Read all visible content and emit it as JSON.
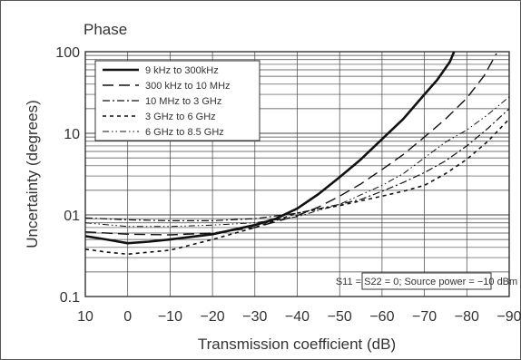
{
  "chart_data": {
    "type": "line",
    "title": "Phase",
    "xlabel": "Transmission coefficient (dB)",
    "ylabel": "Uncertainty (degrees)",
    "x_scale": "linear-reversed",
    "y_scale": "log",
    "xlim": [
      10,
      -90
    ],
    "ylim": [
      0.1,
      100
    ],
    "x_ticks": [
      10,
      0,
      -10,
      -20,
      -30,
      -40,
      -50,
      -60,
      -70,
      -80,
      -90
    ],
    "x_tick_labels": [
      "10",
      "0",
      "−10",
      "−20",
      "−30",
      "−40",
      "−50",
      "−60",
      "−70",
      "−80",
      "−90"
    ],
    "y_ticks": [
      0.1,
      1,
      10,
      100
    ],
    "y_tick_labels": [
      "0.1",
      "01",
      "10",
      "100"
    ],
    "grid": true,
    "legend_position": "top-left",
    "annotation": "S11 = S22 = 0; Source power = −10 dBm",
    "series": [
      {
        "name": "9 kHz to 300kHz",
        "style": "solid-thick",
        "x": [
          10,
          5,
          0,
          -5,
          -10,
          -20,
          -30,
          -35,
          -40,
          -45,
          -50,
          -55,
          -60,
          -65,
          -70,
          -73,
          -76,
          -77
        ],
        "y": [
          0.55,
          0.5,
          0.45,
          0.47,
          0.5,
          0.58,
          0.75,
          0.9,
          1.2,
          1.8,
          2.9,
          4.8,
          8.5,
          15,
          30,
          45,
          75,
          100
        ]
      },
      {
        "name": "300 kHz to 10 MHz",
        "style": "long-dash",
        "x": [
          10,
          0,
          -10,
          -20,
          -30,
          -40,
          -45,
          -50,
          -55,
          -60,
          -65,
          -70,
          -75,
          -80,
          -84,
          -87
        ],
        "y": [
          0.62,
          0.58,
          0.57,
          0.6,
          0.7,
          0.98,
          1.25,
          1.7,
          2.4,
          3.6,
          5.5,
          9,
          15,
          27,
          50,
          95
        ]
      },
      {
        "name": "10 MHz to 3 GHz",
        "style": "dash-dot",
        "x": [
          10,
          0,
          -10,
          -20,
          -30,
          -40,
          -50,
          -55,
          -60,
          -65,
          -70,
          -75,
          -80,
          -85,
          -90
        ],
        "y": [
          0.92,
          0.87,
          0.85,
          0.85,
          0.9,
          1.05,
          1.35,
          1.55,
          1.95,
          2.5,
          3.3,
          4.6,
          7,
          11.5,
          20
        ]
      },
      {
        "name": "3 GHz to 6 GHz",
        "style": "short-dash",
        "x": [
          10,
          5,
          0,
          -10,
          -20,
          -30,
          -40,
          -50,
          -60,
          -65,
          -70,
          -75,
          -80,
          -85,
          -90
        ],
        "y": [
          0.38,
          0.35,
          0.33,
          0.37,
          0.5,
          0.7,
          1.05,
          1.3,
          1.7,
          1.95,
          2.3,
          3.2,
          4.8,
          8,
          15
        ]
      },
      {
        "name": "6 GHz to 8.5 GHz",
        "style": "dash-dot-dot",
        "x": [
          10,
          0,
          -10,
          -20,
          -30,
          -40,
          -50,
          -60,
          -65,
          -70,
          -75,
          -80,
          -85,
          -90
        ],
        "y": [
          0.8,
          0.72,
          0.72,
          0.75,
          0.8,
          0.95,
          1.35,
          2.3,
          3.2,
          5,
          7.8,
          11,
          17,
          28
        ]
      }
    ]
  }
}
